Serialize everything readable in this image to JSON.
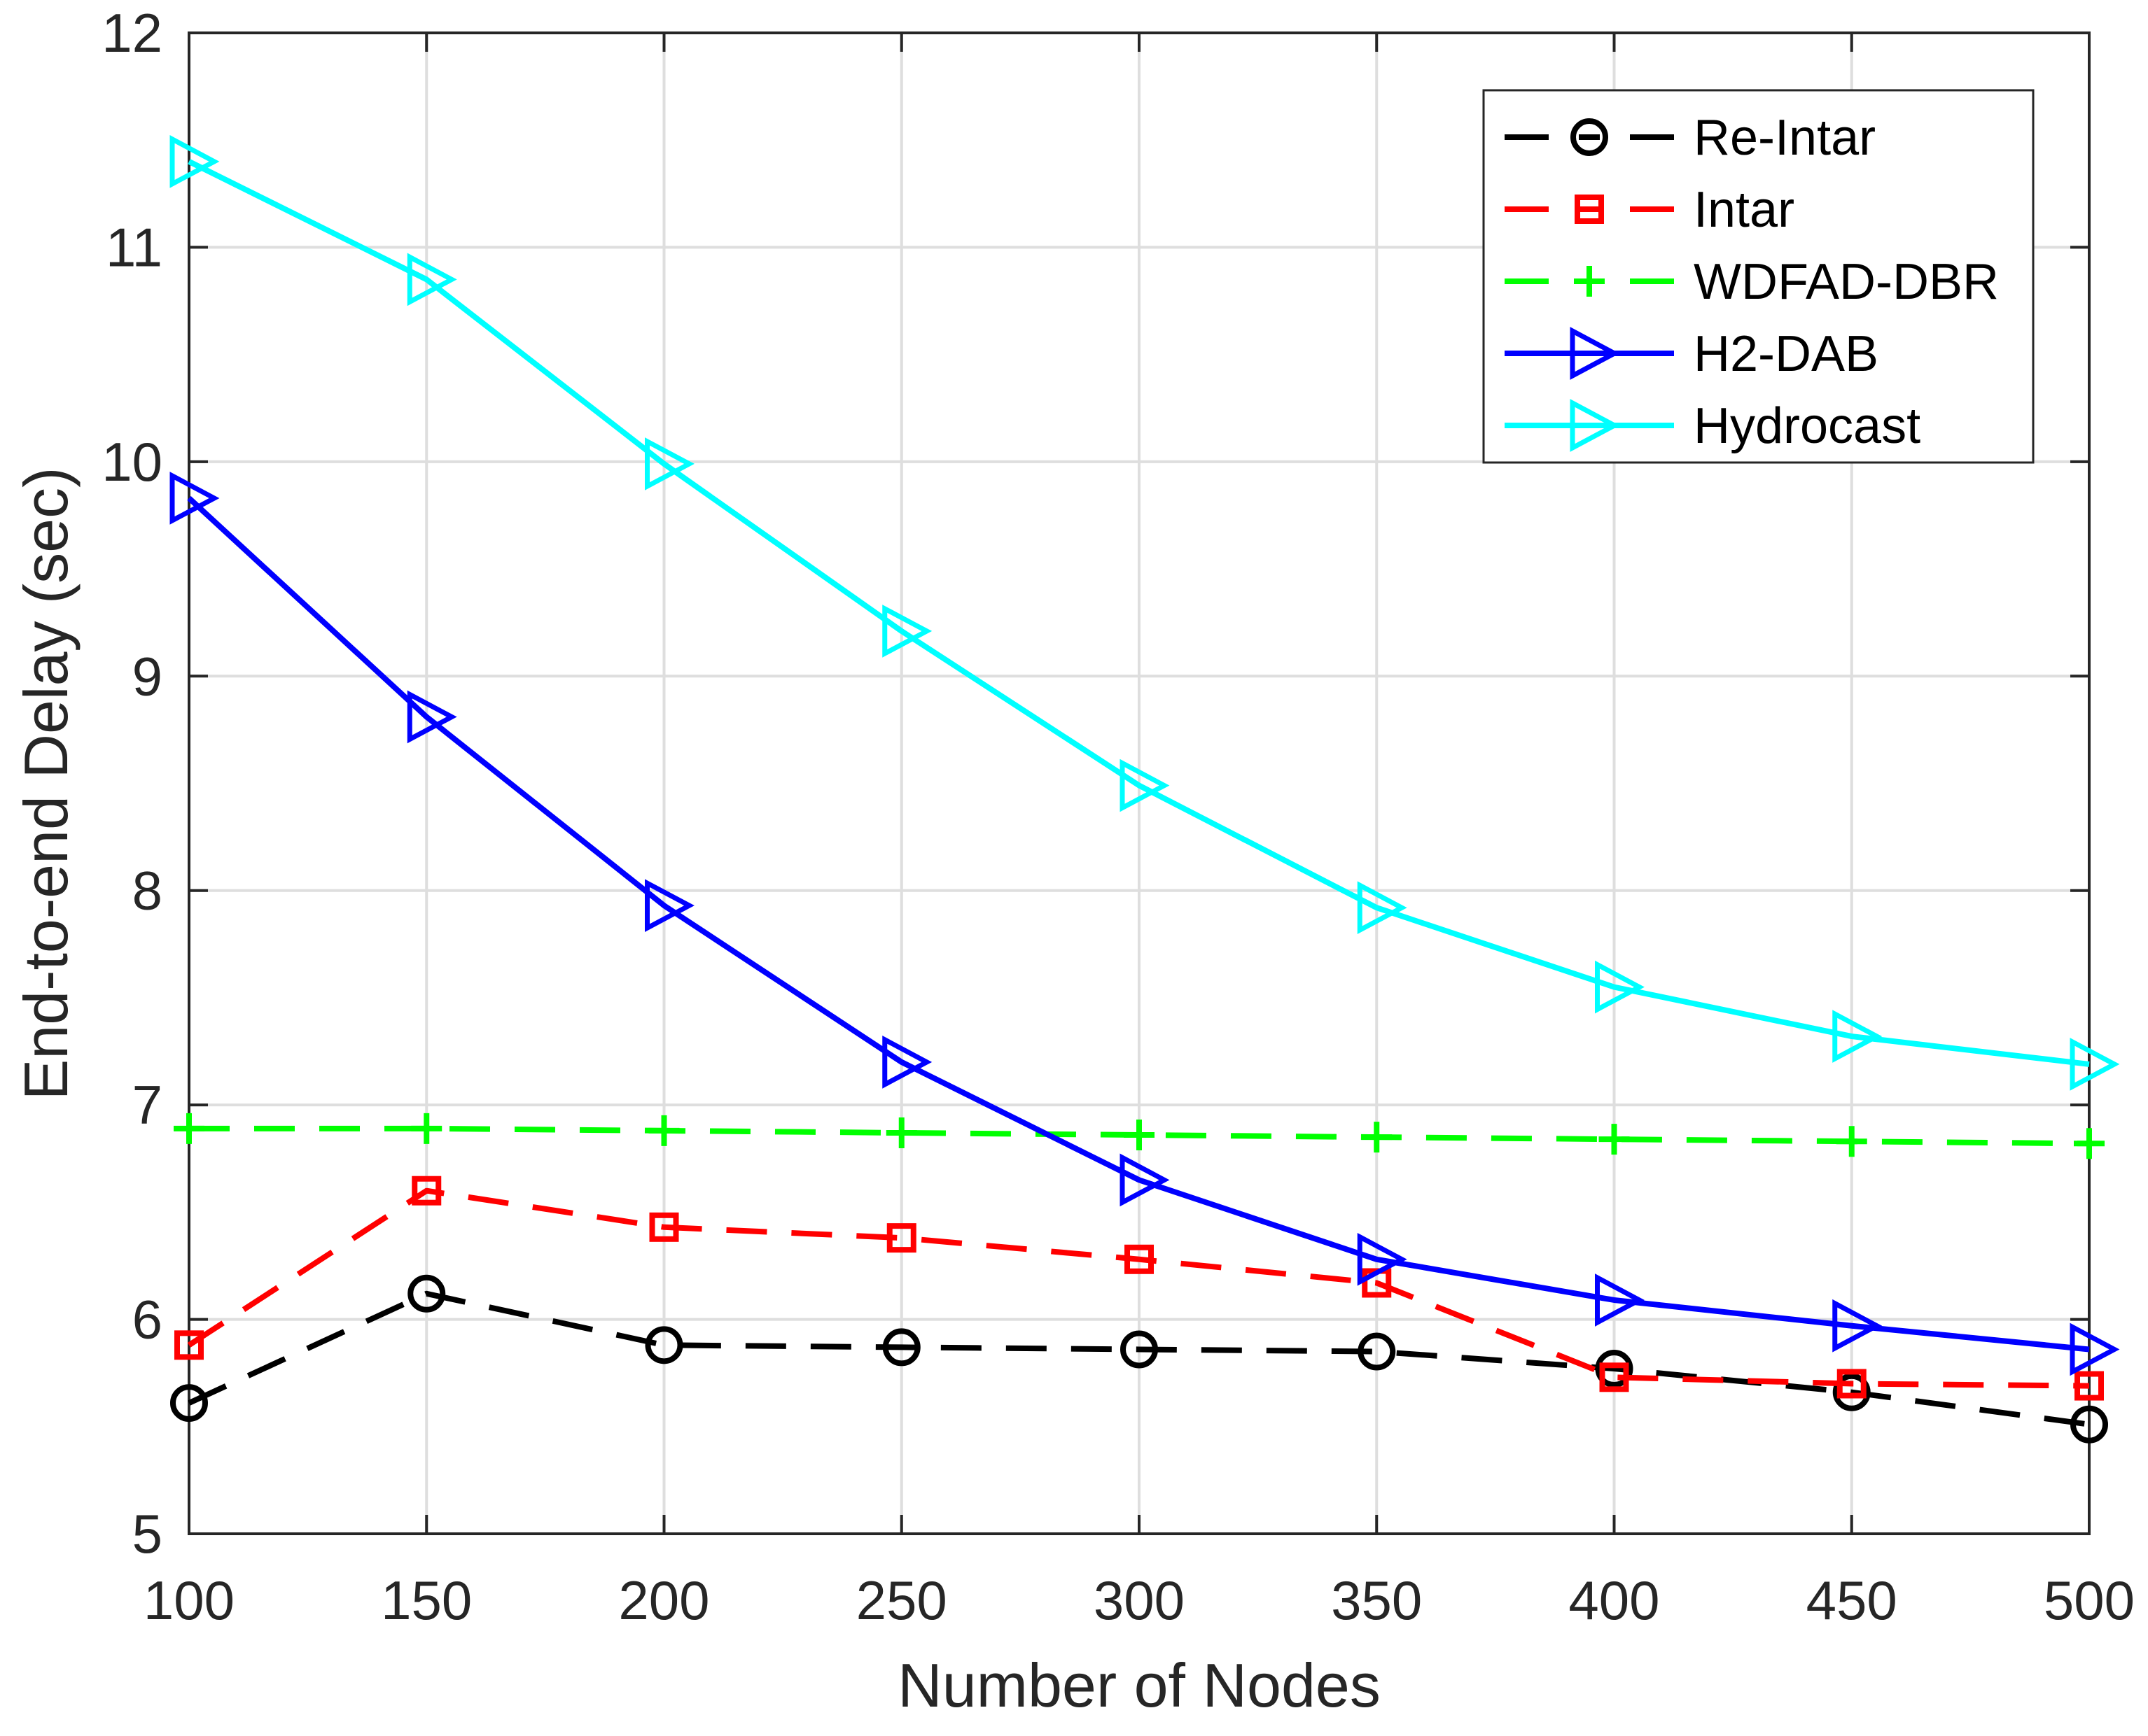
{
  "chart_data": {
    "type": "line",
    "xlabel": "Number of Nodes",
    "ylabel": "End-to-end Delay (sec)",
    "x": [
      100,
      150,
      200,
      250,
      300,
      350,
      400,
      450,
      500
    ],
    "xlim": [
      100,
      500
    ],
    "ylim": [
      5,
      12
    ],
    "xticks": [
      100,
      150,
      200,
      250,
      300,
      350,
      400,
      450,
      500
    ],
    "yticks": [
      5,
      6,
      7,
      8,
      9,
      10,
      11,
      12
    ],
    "grid": true,
    "legend_location": "top-right",
    "axis_color": "#262626",
    "grid_color": "#dedede",
    "series": [
      {
        "name": "Re-Intar",
        "color": "#000000",
        "line_style": "dashed",
        "marker": "circle",
        "values": [
          5.61,
          6.12,
          5.88,
          5.87,
          5.86,
          5.85,
          5.77,
          5.66,
          5.51
        ]
      },
      {
        "name": "Intar",
        "color": "#ff0000",
        "line_style": "dashed",
        "marker": "square",
        "values": [
          5.88,
          6.6,
          6.43,
          6.38,
          6.28,
          6.17,
          5.73,
          5.7,
          5.69
        ]
      },
      {
        "name": "WDFAD-DBR",
        "color": "#00ff00",
        "line_style": "dashed",
        "marker": "plus",
        "values": [
          6.89,
          6.89,
          6.88,
          6.87,
          6.86,
          6.85,
          6.84,
          6.83,
          6.82
        ]
      },
      {
        "name": "H2-DAB",
        "color": "#0000ff",
        "line_style": "solid",
        "marker": "triangle-right",
        "values": [
          9.83,
          8.81,
          7.93,
          7.2,
          6.65,
          6.28,
          6.09,
          5.97,
          5.86
        ]
      },
      {
        "name": "Hydrocast",
        "color": "#00ffff",
        "line_style": "solid",
        "marker": "triangle-right",
        "values": [
          11.4,
          10.85,
          9.99,
          9.21,
          8.49,
          7.92,
          7.55,
          7.32,
          7.19
        ]
      }
    ]
  }
}
